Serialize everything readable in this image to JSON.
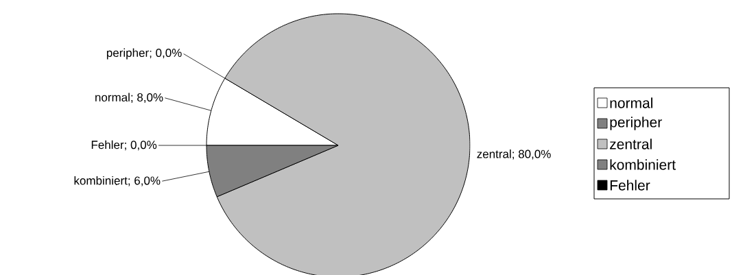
{
  "chart_data": {
    "type": "pie",
    "categories": [
      "normal",
      "peripher",
      "zentral",
      "kombiniert",
      "Fehler"
    ],
    "values": [
      8,
      0,
      80,
      6,
      0
    ],
    "value_labels": [
      "normal; 8,0%",
      "peripher; 0,0%",
      "zentral; 80,0%",
      "kombiniert; 6,0%",
      "Fehler; 0,0%"
    ],
    "colors": [
      "#ffffff",
      "#808080",
      "#c0c0c0",
      "#808080",
      "#000000"
    ],
    "legend": "right"
  }
}
